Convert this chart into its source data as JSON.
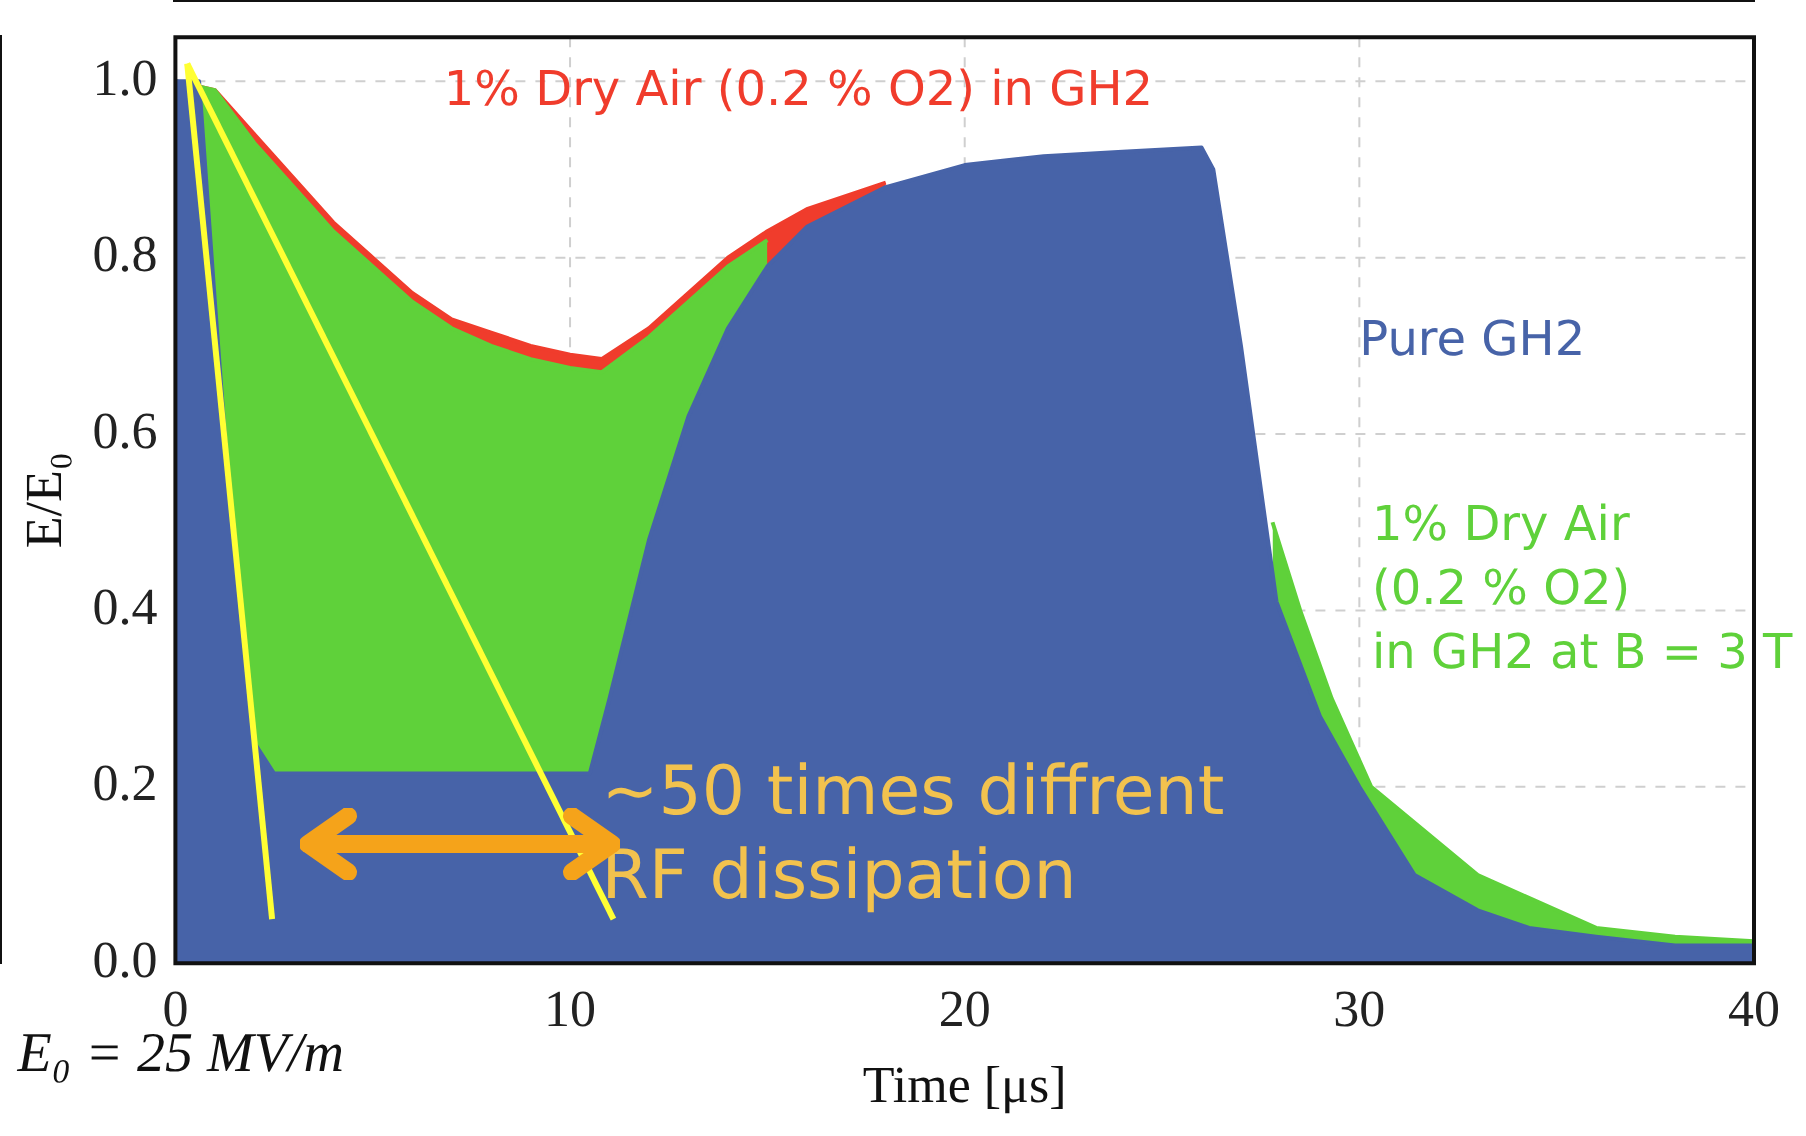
{
  "chart_data": {
    "type": "area",
    "xlabel": "Time [μs]",
    "ylabel": "E/E₀",
    "annotations": [
      "~50 times diffrent\nRF dissipation",
      "E₀ = 25 MV/m"
    ],
    "xlim": [
      0,
      40
    ],
    "xticks": [
      0,
      10,
      20,
      30,
      40
    ],
    "ylim": [
      0,
      1.05
    ],
    "yticks": [
      {
        "value": 0,
        "label": "0.0"
      },
      {
        "value": 0.2,
        "label": "0.2"
      },
      {
        "value": 0.4,
        "label": "0.4"
      },
      {
        "value": 0.6,
        "label": "0.6"
      },
      {
        "value": 0.8,
        "label": "0.8"
      },
      {
        "value": 1,
        "label": "1.0"
      }
    ],
    "grid": true,
    "legend": false,
    "series": [
      {
        "name": "Pure GH2",
        "color": "#4763a8",
        "x": [
          0,
          0.6,
          1,
          1.5,
          2,
          2.5,
          5,
          8,
          10.5,
          11,
          12,
          13,
          14,
          15,
          16,
          18,
          20,
          22,
          24,
          26,
          26.3,
          27,
          27.9,
          29,
          30,
          31.4,
          33,
          34.3,
          36,
          38,
          40
        ],
        "values": [
          1,
          1,
          0.75,
          0.45,
          0.25,
          0.215,
          0.215,
          0.215,
          0.215,
          0.3,
          0.48,
          0.62,
          0.72,
          0.79,
          0.835,
          0.88,
          0.905,
          0.915,
          0.92,
          0.925,
          0.9,
          0.7,
          0.41,
          0.28,
          0.2,
          0.1,
          0.06,
          0.04,
          0.03,
          0.02,
          0.02
        ]
      },
      {
        "name": "1% Dry Air\n(0.2 % O2)\nin GH2 at B = 3 T",
        "color": "#5fd13a",
        "x": [
          0,
          1,
          2,
          3,
          4,
          5,
          6,
          7,
          8,
          9,
          10,
          10.8,
          12,
          13,
          14,
          15,
          16,
          27.8,
          28.5,
          29.3,
          30.3,
          33,
          36,
          38,
          40
        ],
        "values": [
          1,
          0.99,
          0.93,
          0.88,
          0.83,
          0.79,
          0.75,
          0.72,
          0.7,
          0.685,
          0.675,
          0.67,
          0.71,
          0.75,
          0.79,
          0.82,
          null,
          0.5,
          0.4,
          0.3,
          0.2,
          0.1,
          0.04,
          0.03,
          0.025
        ]
      },
      {
        "name": "1% Dry Air (0.2 % O2) in GH2",
        "color": "#f03c2c",
        "x": [
          0,
          1,
          2,
          3,
          4,
          5,
          6,
          7,
          8,
          9,
          10,
          10.8,
          12,
          13,
          14,
          15,
          16,
          18
        ],
        "values": [
          1,
          0.99,
          0.94,
          0.89,
          0.84,
          0.8,
          0.76,
          0.73,
          0.715,
          0.7,
          0.69,
          0.685,
          0.72,
          0.76,
          0.8,
          0.83,
          0.855,
          0.885
        ]
      },
      {
        "type": "line",
        "color": "#ffff33",
        "x": [
          0.3,
          2.45
        ],
        "values": [
          1.02,
          0.05
        ]
      },
      {
        "type": "line",
        "color": "#ffff33",
        "x": [
          0.3,
          11.1
        ],
        "values": [
          1.02,
          0.05
        ]
      }
    ]
  }
}
